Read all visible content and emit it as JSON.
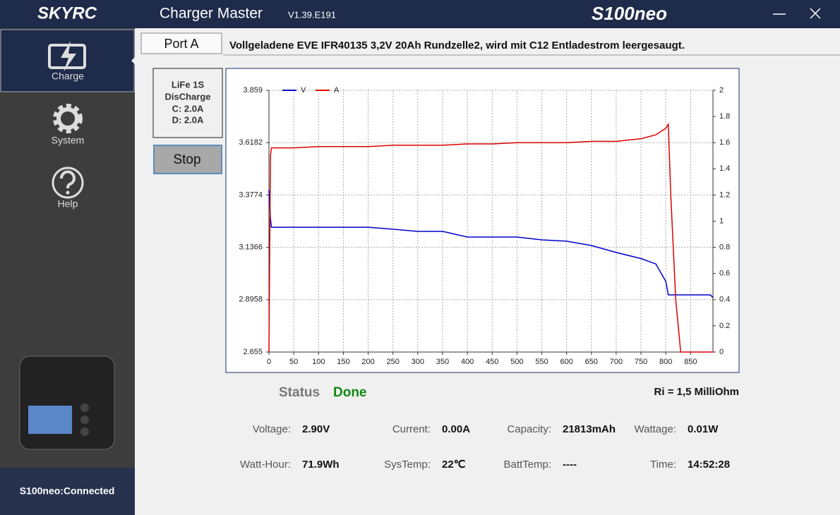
{
  "header": {
    "brand": "SKYRC",
    "app_title": "Charger Master",
    "version": "V1.39.E191",
    "model": "S100neo"
  },
  "sidebar": {
    "items": [
      "Charge",
      "System",
      "Help"
    ],
    "connection": "S100neo:Connected"
  },
  "port_tab": "Port A",
  "description": "Vollgeladene EVE IFR40135 3,2V 20Ah Rundzelle2, wird mit C12 Entladestrom leergesaugt.",
  "mode_box": [
    "LiFe 1S",
    "DisCharge",
    "C: 2.0A",
    "D: 2.0A"
  ],
  "stop_button": "Stop",
  "status": {
    "label": "Status",
    "value": "Done"
  },
  "ri": "Ri = 1,5 MilliOhm",
  "stats": [
    {
      "label": "Voltage:",
      "value": "2.90V"
    },
    {
      "label": "Current:",
      "value": "0.00A"
    },
    {
      "label": "Capacity:",
      "value": "21813mAh"
    },
    {
      "label": "Wattage:",
      "value": "0.01W"
    },
    {
      "label": "Watt-Hour:",
      "value": "71.9Wh"
    },
    {
      "label": "SysTemp:",
      "value": "22℃"
    },
    {
      "label": "BattTemp:",
      "value": "----"
    },
    {
      "label": "Time:",
      "value": "14:52:28"
    }
  ],
  "chart_data": {
    "type": "line",
    "grid": true,
    "legend": "top-left",
    "x": [
      0,
      3,
      5,
      50,
      100,
      150,
      200,
      250,
      300,
      350,
      400,
      450,
      500,
      550,
      600,
      650,
      700,
      750,
      780,
      800,
      805,
      810,
      815,
      820,
      825,
      830,
      850,
      870,
      890,
      895
    ],
    "xlim": [
      0,
      895
    ],
    "xticks": [
      0,
      50,
      100,
      150,
      200,
      250,
      300,
      350,
      400,
      450,
      500,
      550,
      600,
      650,
      700,
      750,
      800,
      850
    ],
    "ylim": [
      2.655,
      3.859
    ],
    "yticks": [
      2.655,
      2.8958,
      3.1366,
      3.3774,
      3.6182,
      3.859
    ],
    "y2lim": [
      0,
      2
    ],
    "y2ticks": [
      0,
      0.2,
      0.4,
      0.6,
      0.8,
      1,
      1.2,
      1.4,
      1.6,
      1.8,
      2
    ],
    "series": [
      {
        "name": "V",
        "color": "#0000cc",
        "values": [
          3.4,
          3.27,
          3.229,
          3.229,
          3.229,
          3.229,
          3.229,
          3.22,
          3.21,
          3.21,
          3.184,
          3.184,
          3.184,
          3.171,
          3.165,
          3.145,
          3.113,
          3.085,
          3.06,
          2.98,
          2.918,
          2.918,
          2.918,
          2.918,
          2.918,
          2.918,
          2.918,
          2.918,
          2.918,
          2.905
        ]
      },
      {
        "name": "A",
        "color": "#dd0000",
        "axis": "y2",
        "values": [
          0,
          1.5,
          1.56,
          1.56,
          1.57,
          1.57,
          1.57,
          1.58,
          1.58,
          1.58,
          1.59,
          1.59,
          1.6,
          1.6,
          1.6,
          1.61,
          1.61,
          1.63,
          1.66,
          1.71,
          1.74,
          1.2,
          0.8,
          0.4,
          0.2,
          0,
          0,
          0,
          0,
          0
        ]
      }
    ]
  }
}
